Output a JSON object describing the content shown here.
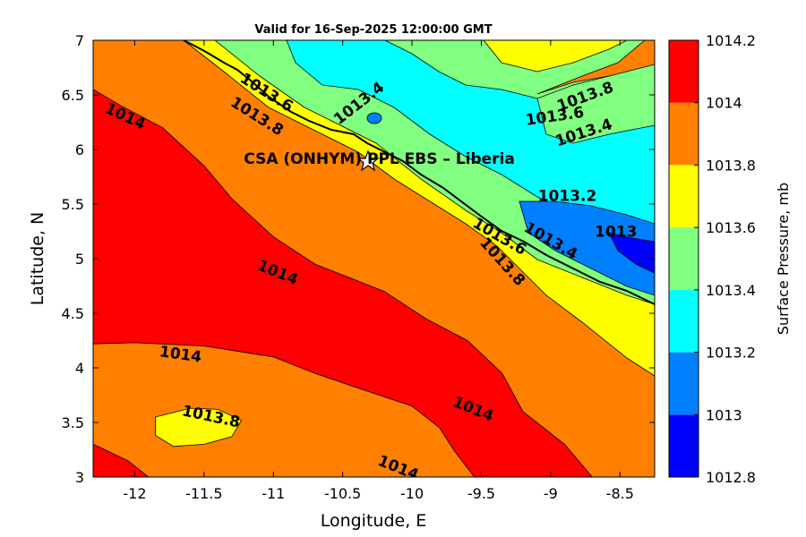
{
  "chart_data": {
    "type": "heatmap",
    "title": "Valid for 16-Sep-2025 12:00:00 GMT",
    "xlabel": "Longitude, E",
    "ylabel": "Latitude, N",
    "colorbar_label": "Surface Pressure, mb",
    "xlim": [
      -12.3,
      -8.25
    ],
    "ylim": [
      3,
      7
    ],
    "xticks": [
      -12,
      -11.5,
      -11,
      -10.5,
      -10,
      -9.5,
      -9,
      -8.5
    ],
    "xtick_labels": [
      "-12",
      "-11.5",
      "-11",
      "-10.5",
      "-10",
      "-9.5",
      "-9",
      "-8.5"
    ],
    "yticks": [
      3,
      3.5,
      4,
      4.5,
      5,
      5.5,
      6,
      6.5,
      7
    ],
    "ytick_labels": [
      "3",
      "3.5",
      "4",
      "4.5",
      "5",
      "5.5",
      "6",
      "6.5",
      "7"
    ],
    "levels": [
      1012.8,
      1013,
      1013.2,
      1013.4,
      1013.6,
      1013.8,
      1014,
      1014.2
    ],
    "level_labels": [
      "1012.8",
      "1013",
      "1013.2",
      "1013.4",
      "1013.6",
      "1013.8",
      "1014",
      "1014.2"
    ],
    "level_colors": [
      "#0000ff",
      "#0080ff",
      "#00ffff",
      "#80ff80",
      "#ffff00",
      "#ff8000",
      "#ff0000",
      "#800000"
    ],
    "regions": [
      {
        "name": "red-southwest-band",
        "level": 1014,
        "polygon": [
          [
            -12.3,
            6.55
          ],
          [
            -12.1,
            6.4
          ],
          [
            -11.8,
            6.2
          ],
          [
            -11.5,
            5.85
          ],
          [
            -11.3,
            5.55
          ],
          [
            -11.0,
            5.2
          ],
          [
            -10.7,
            4.95
          ],
          [
            -10.5,
            4.85
          ],
          [
            -10.2,
            4.7
          ],
          [
            -9.9,
            4.45
          ],
          [
            -9.6,
            4.25
          ],
          [
            -9.35,
            3.95
          ],
          [
            -9.2,
            3.6
          ],
          [
            -8.9,
            3.3
          ],
          [
            -8.7,
            3.0
          ],
          [
            -12.3,
            3.0
          ]
        ]
      },
      {
        "name": "orange-lower-band",
        "level": 1013.8,
        "polygon": [
          [
            -12.3,
            4.22
          ],
          [
            -12.0,
            4.23
          ],
          [
            -11.5,
            4.2
          ],
          [
            -11.0,
            4.1
          ],
          [
            -10.7,
            3.95
          ],
          [
            -10.4,
            3.82
          ],
          [
            -10.0,
            3.65
          ],
          [
            -9.8,
            3.45
          ],
          [
            -9.7,
            3.25
          ],
          [
            -9.55,
            3.0
          ],
          [
            -12.3,
            3.0
          ]
        ]
      },
      {
        "name": "orange-sw-corner",
        "level": 1014,
        "polygon": [
          [
            -12.3,
            3.3
          ],
          [
            -12.05,
            3.15
          ],
          [
            -11.9,
            3.0
          ],
          [
            -12.3,
            3.0
          ]
        ]
      },
      {
        "name": "yellow-sw-island",
        "level": 1013.6,
        "polygon": [
          [
            -11.85,
            3.55
          ],
          [
            -11.6,
            3.63
          ],
          [
            -11.4,
            3.62
          ],
          [
            -11.23,
            3.52
          ],
          [
            -11.3,
            3.37
          ],
          [
            -11.5,
            3.3
          ],
          [
            -11.72,
            3.28
          ],
          [
            -11.85,
            3.38
          ]
        ]
      }
    ],
    "contour_labels": [
      {
        "text": "1014",
        "x": -12.07,
        "y": 6.3,
        "angle": 25
      },
      {
        "text": "1013.6",
        "x": -11.05,
        "y": 6.52,
        "angle": 32
      },
      {
        "text": "1013.8",
        "x": -11.12,
        "y": 6.3,
        "angle": 32
      },
      {
        "text": "1013.4",
        "x": -10.38,
        "y": 6.42,
        "angle": -38
      },
      {
        "text": "1013.8",
        "x": -8.75,
        "y": 6.48,
        "angle": -20
      },
      {
        "text": "1013.6",
        "x": -8.97,
        "y": 6.3,
        "angle": -8
      },
      {
        "text": "1013.4",
        "x": -8.76,
        "y": 6.15,
        "angle": -18
      },
      {
        "text": "1013.2",
        "x": -8.88,
        "y": 5.57,
        "angle": 0
      },
      {
        "text": "1013",
        "x": -8.53,
        "y": 5.24,
        "angle": 0
      },
      {
        "text": "1013.6",
        "x": -9.37,
        "y": 5.2,
        "angle": 30
      },
      {
        "text": "1013.4",
        "x": -9.0,
        "y": 5.16,
        "angle": 30
      },
      {
        "text": "1013.8",
        "x": -9.35,
        "y": 4.97,
        "angle": 48
      },
      {
        "text": "1014",
        "x": -10.97,
        "y": 4.87,
        "angle": 22
      },
      {
        "text": "1014",
        "x": -11.67,
        "y": 4.12,
        "angle": 8
      },
      {
        "text": "1013.8",
        "x": -11.45,
        "y": 3.55,
        "angle": 12
      },
      {
        "text": "1014",
        "x": -9.56,
        "y": 3.62,
        "angle": 22
      },
      {
        "text": "1014",
        "x": -10.1,
        "y": 3.08,
        "angle": 22
      }
    ],
    "annotation": {
      "text": "CSA (ONHYM) PPL EBS  – Liberia",
      "x": -10.3,
      "y": 5.92
    },
    "grid": false,
    "colorbar_position": "right"
  }
}
